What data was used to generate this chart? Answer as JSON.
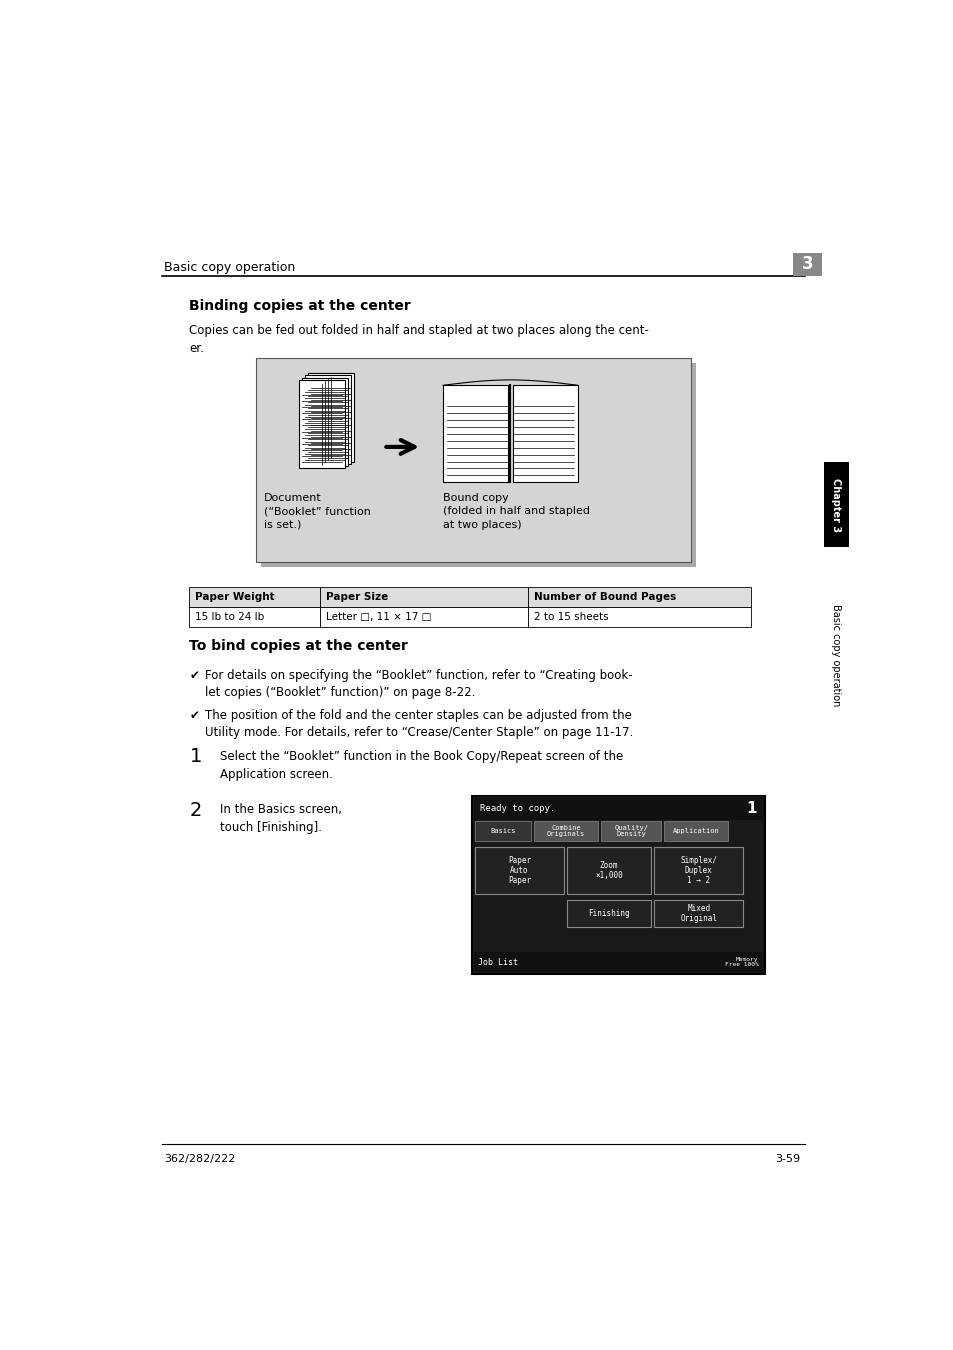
{
  "bg_color": "#ffffff",
  "header_text": "Basic copy operation",
  "header_chapter": "3",
  "section_title": "Binding copies at the center",
  "intro_text": "Copies can be fed out folded in half and stapled at two places along the cent-\ner.",
  "table_headers": [
    "Paper Weight",
    "Paper Size",
    "Number of Bound Pages"
  ],
  "table_row": [
    "15 lb to 24 lb",
    "Letter □, 11 × 17 □",
    "2 to 15 sheets"
  ],
  "section2_title": "To bind copies at the center",
  "bullet1_line1": "For details on specifying the “Booklet” function, refer to “Creating book-",
  "bullet1_line2": "let copies (“Booklet” function)” on page 8-22.",
  "bullet2_line1": "The position of the fold and the center staples can be adjusted from the",
  "bullet2_line2": "Utility mode. For details, refer to “Crease/Center Staple” on page 11-17.",
  "step1_num": "1",
  "step1_text": "Select the “Booklet” function in the Book Copy/Repeat screen of the\nApplication screen.",
  "step2_num": "2",
  "step2_text": "In the Basics screen,\ntouch [Finishing].",
  "footer_left": "362/282/222",
  "footer_right": "3-59",
  "chapter_tab_text": "Chapter 3",
  "side_tab_text": "Basic copy operation",
  "doc_label": "Document\n(“Booklet” function\nis set.)",
  "bound_label": "Bound copy\n(folded in half and stapled\nat two places)"
}
